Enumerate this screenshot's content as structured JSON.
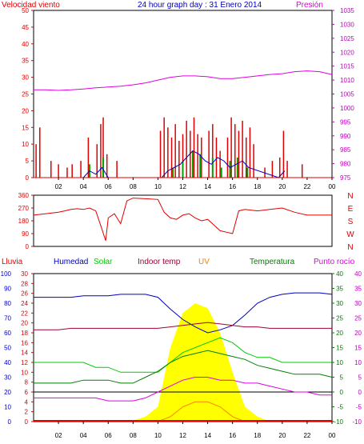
{
  "header": {
    "left_title": "Velocidad viento",
    "center_title": "24 hour graph day : 31 Enero 2014",
    "right_title": "Presión"
  },
  "colors": {
    "wind": "#e00000",
    "gust": "#00a000",
    "avg": "#0000c0",
    "pressure": "#e000e0",
    "humidity": "#0000c0",
    "solar": "#00cc00",
    "indoor": "#a00030",
    "uv": "#ff8000",
    "temp": "#008000",
    "dew": "#e000e0",
    "rain": "#e00000",
    "solar_fill": "#ffff00",
    "axis_left": "#e00000",
    "axis_blue": "#0000c0",
    "axis_right_purple": "#c000c0",
    "axis_green": "#008000"
  },
  "x_ticks": [
    "02",
    "04",
    "06",
    "08",
    "10",
    "12",
    "14",
    "16",
    "18",
    "20",
    "22",
    "00"
  ],
  "chart_data": [
    {
      "type": "line",
      "name": "wind_pressure",
      "y_left_ticks": [
        0,
        5,
        10,
        15,
        20,
        25,
        30,
        35,
        40,
        45,
        50
      ],
      "y_right_ticks": [
        975,
        980,
        985,
        990,
        995,
        1000,
        1005,
        1010,
        1015,
        1020,
        1025,
        1030,
        1035
      ],
      "ylim_left": [
        0,
        50
      ],
      "ylim_right": [
        975,
        1035
      ],
      "hours": [
        0,
        1,
        2,
        3,
        4,
        5,
        6,
        7,
        8,
        9,
        10,
        11,
        12,
        13,
        14,
        15,
        16,
        17,
        18,
        19,
        20,
        21,
        22,
        23,
        24
      ],
      "pressure": [
        1006.5,
        1006.5,
        1006.3,
        1006.5,
        1006.8,
        1007.2,
        1007.5,
        1007.8,
        1008.3,
        1009.0,
        1010.0,
        1011.0,
        1011.5,
        1011.5,
        1011.2,
        1010.5,
        1010.5,
        1011.0,
        1011.5,
        1012.0,
        1012.3,
        1013.0,
        1013.3,
        1013.0,
        1012.0
      ],
      "wind_hours": [
        0.2,
        0.5,
        1.4,
        2.0,
        2.7,
        3.1,
        3.8,
        4.4,
        5.1,
        5.4,
        5.6,
        5.9,
        6.7,
        10.2,
        10.5,
        10.8,
        11.1,
        11.4,
        11.7,
        12.0,
        12.3,
        12.6,
        12.9,
        13.2,
        13.5,
        14.1,
        14.4,
        14.7,
        15.0,
        15.6,
        15.9,
        16.2,
        16.5,
        16.8,
        17.1,
        17.4,
        17.7,
        18.6,
        19.2,
        19.8,
        20.1,
        20.4,
        21.6
      ],
      "wind_values": [
        10,
        15,
        5,
        4,
        3,
        4,
        5,
        12,
        10,
        16,
        18,
        7,
        5,
        14,
        18,
        15,
        12,
        16,
        11,
        13,
        17,
        14,
        18,
        13,
        12,
        14,
        16,
        12,
        8,
        12,
        18,
        16,
        14,
        17,
        12,
        15,
        10,
        3,
        5,
        6,
        14,
        5,
        4
      ],
      "gust_hours": [
        4.5,
        5.6,
        11.2,
        12.0,
        12.8,
        13.4,
        14.4,
        15.1,
        15.8,
        16.4,
        17.2
      ],
      "gust_values": [
        4,
        6,
        3,
        5,
        8,
        7,
        6,
        3,
        5,
        6,
        3
      ],
      "avg_hours": [
        4.0,
        4.5,
        5.0,
        5.5,
        6.0,
        10.3,
        10.8,
        11.3,
        11.8,
        12.3,
        12.8,
        13.3,
        13.8,
        14.3,
        14.8,
        15.3,
        15.8,
        16.3,
        16.8,
        17.3,
        19.7,
        20.2
      ],
      "avg_values": [
        0,
        2,
        1,
        3,
        0,
        0,
        2,
        3,
        4,
        6,
        8,
        7,
        5,
        4,
        6,
        5,
        3,
        4,
        5,
        3,
        0,
        2
      ]
    },
    {
      "type": "line",
      "name": "wind_direction",
      "y_left_ticks": [
        0,
        90,
        180,
        270,
        360
      ],
      "y_right_labels": [
        "N",
        "W",
        "S",
        "E",
        "N"
      ],
      "ylim_left": [
        0,
        360
      ],
      "hours": [
        0,
        1,
        2,
        2.5,
        3,
        3.5,
        4,
        4.5,
        5,
        5.5,
        5.8,
        6,
        6.5,
        7,
        7.5,
        8,
        9,
        10,
        10.5,
        11,
        11.5,
        12,
        12.5,
        13,
        13.5,
        14,
        14.5,
        15,
        15.5,
        16,
        16.5,
        17,
        18,
        19,
        20,
        21,
        22,
        23,
        24
      ],
      "values": [
        220,
        230,
        240,
        250,
        260,
        265,
        260,
        270,
        250,
        120,
        40,
        200,
        230,
        160,
        320,
        340,
        335,
        330,
        240,
        200,
        190,
        220,
        230,
        200,
        180,
        190,
        150,
        110,
        100,
        90,
        250,
        260,
        250,
        260,
        270,
        240,
        220,
        220,
        220
      ]
    },
    {
      "type": "line",
      "name": "weather_multi",
      "y_hum_ticks": [
        0,
        10,
        20,
        30,
        40,
        50,
        60,
        70,
        80,
        90,
        100
      ],
      "y_rain_ticks": [
        0,
        2,
        4,
        6,
        8,
        10,
        12,
        14,
        16,
        18,
        20,
        22,
        24,
        26,
        28,
        30
      ],
      "y_solar_ticks": [
        0,
        2,
        4,
        6,
        8,
        10,
        12,
        14,
        16,
        18,
        20,
        22,
        24,
        26,
        28,
        30
      ],
      "y_temp_ticks": [
        -10,
        -5,
        0,
        5,
        10,
        15,
        20,
        25,
        30,
        35,
        40
      ],
      "y_dew_ticks": [
        -10,
        -5,
        0,
        5,
        10,
        15,
        20,
        25,
        30,
        35,
        40
      ],
      "hours": [
        0,
        1,
        2,
        3,
        4,
        5,
        6,
        7,
        8,
        9,
        10,
        11,
        12,
        13,
        14,
        15,
        16,
        17,
        18,
        19,
        20,
        21,
        22,
        23,
        24
      ],
      "humidity": [
        84,
        84,
        84,
        84,
        85,
        85,
        85,
        86,
        86,
        86,
        84,
        76,
        69,
        64,
        60,
        62,
        65,
        72,
        80,
        84,
        86,
        87,
        87,
        87,
        86
      ],
      "indoor_temp": [
        62,
        62,
        62,
        63,
        63,
        63,
        63,
        63,
        63,
        63,
        63,
        64,
        65,
        66,
        67,
        66,
        65,
        64,
        64,
        63,
        63,
        63,
        63,
        63,
        63
      ],
      "solar": [
        12,
        12,
        12,
        12,
        12,
        11,
        11,
        10,
        10,
        10,
        10,
        12,
        14,
        15,
        16,
        17,
        16,
        14,
        13,
        13,
        12,
        12,
        12,
        12,
        12
      ],
      "temperature": [
        3,
        3,
        3,
        3,
        4,
        4,
        4,
        3,
        3,
        5,
        7,
        10,
        12,
        13,
        14,
        13,
        12,
        11,
        9,
        8,
        7,
        6,
        6,
        6,
        5
      ],
      "dew_point": [
        -2,
        -2,
        -2,
        -2,
        -2,
        -2,
        -3,
        -3,
        -3,
        -2,
        0,
        2,
        4,
        5,
        5,
        4,
        4,
        3,
        3,
        2,
        1,
        0,
        0,
        -1,
        -1
      ],
      "solar_fill": [
        0,
        0,
        0,
        0,
        0,
        0,
        0,
        0,
        0.2,
        1,
        3,
        15,
        22,
        24,
        23,
        18,
        10,
        3,
        1,
        0,
        0,
        0,
        0,
        0,
        0
      ],
      "uv": [
        0,
        0,
        0,
        0,
        0,
        0,
        0,
        0,
        0,
        0,
        0,
        1,
        3,
        4,
        4,
        3,
        1,
        0,
        0,
        0,
        0,
        0,
        0,
        0,
        0
      ],
      "rain": [
        0,
        0,
        0,
        0,
        0,
        0,
        0,
        0,
        0,
        0,
        0,
        0,
        0,
        0,
        0,
        0,
        0,
        0,
        0,
        0,
        0,
        0,
        0,
        0,
        0
      ],
      "labels": {
        "lluvia": "Lluvia",
        "humedad": "Humedad",
        "solar": "Solar",
        "indoor": "Indoor temp",
        "uv": "UV",
        "temperatura": "Temperatura",
        "rocio": "Punto rocío"
      }
    }
  ]
}
